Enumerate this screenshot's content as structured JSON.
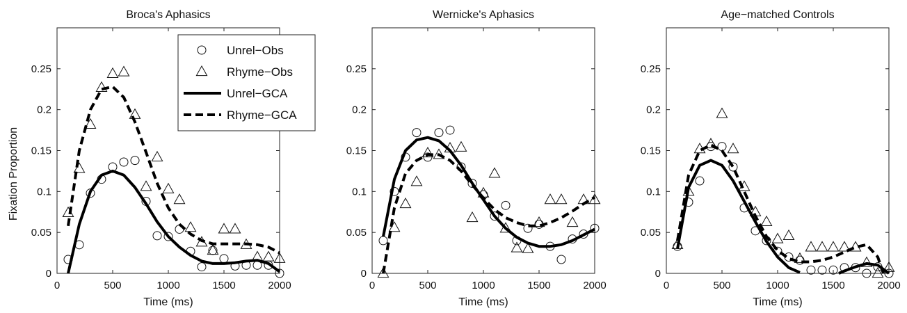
{
  "figure": {
    "ylabel": "Fixation Proportion"
  },
  "legend": {
    "entries": [
      {
        "key": "unrel_obs",
        "label": "Unrel−Obs",
        "kind": "marker",
        "marker": "circle"
      },
      {
        "key": "rhyme_obs",
        "label": "Rhyme−Obs",
        "kind": "marker",
        "marker": "triangle"
      },
      {
        "key": "unrel_gca",
        "label": "Unrel−GCA",
        "kind": "line",
        "dash": "solid"
      },
      {
        "key": "rhyme_gca",
        "label": "Rhyme−GCA",
        "kind": "line",
        "dash": "dashed"
      }
    ],
    "placement": "top-right of first panel"
  },
  "chart_data": [
    {
      "type": "scatter",
      "title": "Broca's Aphasics",
      "xlabel": "Time (ms)",
      "ylabel": "Fixation Proportion",
      "xlim": [
        0,
        2000
      ],
      "ylim": [
        0,
        0.3
      ],
      "xticks": [
        "0",
        "500",
        "1000",
        "1500",
        "2000"
      ],
      "yticks": [
        "0",
        "0.05",
        "0.1",
        "0.15",
        "0.2",
        "0.25"
      ],
      "series": [
        {
          "name": "Unrel-Obs",
          "marker": "circle",
          "x": [
            100,
            200,
            300,
            400,
            500,
            600,
            700,
            800,
            900,
            1000,
            1100,
            1200,
            1300,
            1400,
            1500,
            1600,
            1700,
            1800,
            1900,
            2000
          ],
          "y": [
            0.017,
            0.035,
            0.098,
            0.115,
            0.13,
            0.136,
            0.138,
            0.088,
            0.046,
            0.045,
            0.054,
            0.027,
            0.008,
            0.028,
            0.018,
            0.009,
            0.01,
            0.01,
            0.01,
            0.0
          ]
        },
        {
          "name": "Rhyme-Obs",
          "marker": "triangle",
          "x": [
            100,
            200,
            300,
            400,
            500,
            600,
            700,
            800,
            900,
            1000,
            1100,
            1200,
            1300,
            1400,
            1500,
            1600,
            1700,
            1800,
            1900,
            2000
          ],
          "y": [
            0.074,
            0.128,
            0.182,
            0.227,
            0.244,
            0.246,
            0.194,
            0.106,
            0.142,
            0.103,
            0.09,
            0.056,
            0.038,
            0.028,
            0.054,
            0.054,
            0.035,
            0.02,
            0.02,
            0.018
          ]
        },
        {
          "name": "Unrel-GCA",
          "dash": "solid",
          "x": [
            100,
            200,
            300,
            400,
            500,
            600,
            700,
            800,
            900,
            1000,
            1100,
            1200,
            1300,
            1400,
            1500,
            1600,
            1700,
            1800,
            1900,
            2000
          ],
          "y": [
            0.0,
            0.06,
            0.1,
            0.12,
            0.125,
            0.12,
            0.105,
            0.085,
            0.063,
            0.045,
            0.032,
            0.022,
            0.015,
            0.012,
            0.012,
            0.013,
            0.015,
            0.016,
            0.012,
            0.002
          ]
        },
        {
          "name": "Rhyme-GCA",
          "dash": "dashed",
          "x": [
            100,
            200,
            300,
            400,
            500,
            600,
            700,
            800,
            900,
            1000,
            1100,
            1200,
            1300,
            1400,
            1500,
            1600,
            1700,
            1800,
            1900,
            2000
          ],
          "y": [
            0.058,
            0.15,
            0.2,
            0.225,
            0.228,
            0.215,
            0.185,
            0.148,
            0.11,
            0.08,
            0.06,
            0.048,
            0.04,
            0.036,
            0.036,
            0.036,
            0.036,
            0.035,
            0.032,
            0.025
          ]
        }
      ]
    },
    {
      "type": "scatter",
      "title": "Wernicke's Aphasics",
      "xlabel": "Time (ms)",
      "ylabel": "",
      "xlim": [
        0,
        2000
      ],
      "ylim": [
        0,
        0.3
      ],
      "xticks": [
        "0",
        "500",
        "1000",
        "1500",
        "2000"
      ],
      "yticks": [
        "0",
        "0.05",
        "0.1",
        "0.15",
        "0.2",
        "0.25"
      ],
      "series": [
        {
          "name": "Unrel-Obs",
          "marker": "circle",
          "x": [
            100,
            200,
            300,
            400,
            500,
            600,
            700,
            800,
            900,
            1000,
            1100,
            1200,
            1300,
            1400,
            1500,
            1600,
            1700,
            1800,
            1900,
            2000
          ],
          "y": [
            0.04,
            0.1,
            0.142,
            0.172,
            0.142,
            0.172,
            0.175,
            0.13,
            0.11,
            0.096,
            0.07,
            0.083,
            0.04,
            0.055,
            0.06,
            0.033,
            0.017,
            0.042,
            0.048,
            0.055
          ]
        },
        {
          "name": "Rhyme-Obs",
          "marker": "triangle",
          "x": [
            100,
            200,
            300,
            400,
            500,
            600,
            700,
            800,
            900,
            1000,
            1100,
            1200,
            1300,
            1400,
            1500,
            1600,
            1700,
            1800,
            1900,
            2000
          ],
          "y": [
            0.0,
            0.056,
            0.085,
            0.112,
            0.147,
            0.145,
            0.153,
            0.154,
            0.068,
            0.098,
            0.122,
            0.055,
            0.031,
            0.03,
            0.062,
            0.09,
            0.09,
            0.062,
            0.09,
            0.09
          ]
        },
        {
          "name": "Unrel-GCA",
          "dash": "solid",
          "x": [
            100,
            200,
            300,
            400,
            500,
            600,
            700,
            800,
            900,
            1000,
            1100,
            1200,
            1300,
            1400,
            1500,
            1600,
            1700,
            1800,
            1900,
            2000
          ],
          "y": [
            0.045,
            0.115,
            0.15,
            0.163,
            0.166,
            0.162,
            0.15,
            0.132,
            0.11,
            0.09,
            0.07,
            0.055,
            0.044,
            0.037,
            0.033,
            0.033,
            0.035,
            0.04,
            0.047,
            0.054
          ]
        },
        {
          "name": "Rhyme-GCA",
          "dash": "dashed",
          "x": [
            100,
            200,
            300,
            400,
            500,
            600,
            700,
            800,
            900,
            1000,
            1100,
            1200,
            1300,
            1400,
            1500,
            1600,
            1700,
            1800,
            1900,
            2000
          ],
          "y": [
            0.0,
            0.08,
            0.122,
            0.138,
            0.145,
            0.145,
            0.138,
            0.125,
            0.108,
            0.092,
            0.078,
            0.068,
            0.062,
            0.058,
            0.058,
            0.062,
            0.068,
            0.076,
            0.085,
            0.093
          ]
        }
      ]
    },
    {
      "type": "scatter",
      "title": "Age−matched Controls",
      "xlabel": "Time (ms)",
      "ylabel": "",
      "xlim": [
        0,
        2000
      ],
      "ylim": [
        0,
        0.3
      ],
      "xticks": [
        "0",
        "500",
        "1000",
        "1500",
        "2000"
      ],
      "yticks": [
        "0",
        "0.05",
        "0.1",
        "0.15",
        "0.2",
        "0.25"
      ],
      "series": [
        {
          "name": "Unrel-Obs",
          "marker": "circle",
          "x": [
            100,
            200,
            300,
            400,
            500,
            600,
            700,
            800,
            900,
            1000,
            1100,
            1200,
            1300,
            1400,
            1500,
            1600,
            1700,
            1800,
            1900,
            2000
          ],
          "y": [
            0.033,
            0.087,
            0.113,
            0.155,
            0.155,
            0.13,
            0.08,
            0.052,
            0.04,
            0.027,
            0.02,
            0.016,
            0.004,
            0.004,
            0.004,
            0.007,
            0.007,
            0.0,
            0.008,
            0.0
          ]
        },
        {
          "name": "Rhyme-Obs",
          "marker": "triangle",
          "x": [
            100,
            200,
            300,
            400,
            500,
            600,
            700,
            800,
            900,
            1000,
            1100,
            1200,
            1300,
            1400,
            1500,
            1600,
            1700,
            1800,
            1900,
            2000
          ],
          "y": [
            0.035,
            0.1,
            0.152,
            0.158,
            0.195,
            0.152,
            0.106,
            0.075,
            0.063,
            0.042,
            0.046,
            0.018,
            0.032,
            0.032,
            0.032,
            0.032,
            0.032,
            0.013,
            0.0,
            0.007
          ]
        },
        {
          "name": "Unrel-GCA",
          "dash": "solid",
          "x": [
            100,
            200,
            300,
            400,
            500,
            600,
            700,
            800,
            900,
            1000,
            1100,
            1200,
            1300,
            1400,
            1500,
            1550,
            1600,
            1700,
            1800,
            1900,
            2000
          ],
          "y": [
            0.03,
            0.105,
            0.132,
            0.138,
            0.132,
            0.113,
            0.088,
            0.063,
            0.039,
            0.02,
            0.007,
            0.001,
            null,
            null,
            null,
            0.0,
            0.003,
            0.008,
            0.012,
            0.01,
            0.0
          ]
        },
        {
          "name": "Rhyme-GCA",
          "dash": "dashed",
          "x": [
            100,
            200,
            300,
            400,
            500,
            600,
            700,
            800,
            900,
            1000,
            1100,
            1200,
            1300,
            1400,
            1500,
            1600,
            1700,
            1800,
            1900,
            1950
          ],
          "y": [
            0.04,
            0.12,
            0.15,
            0.157,
            0.15,
            0.13,
            0.1,
            0.07,
            0.045,
            0.028,
            0.018,
            0.014,
            0.014,
            0.016,
            0.02,
            0.026,
            0.032,
            0.035,
            0.02,
            0.0
          ]
        }
      ]
    }
  ]
}
